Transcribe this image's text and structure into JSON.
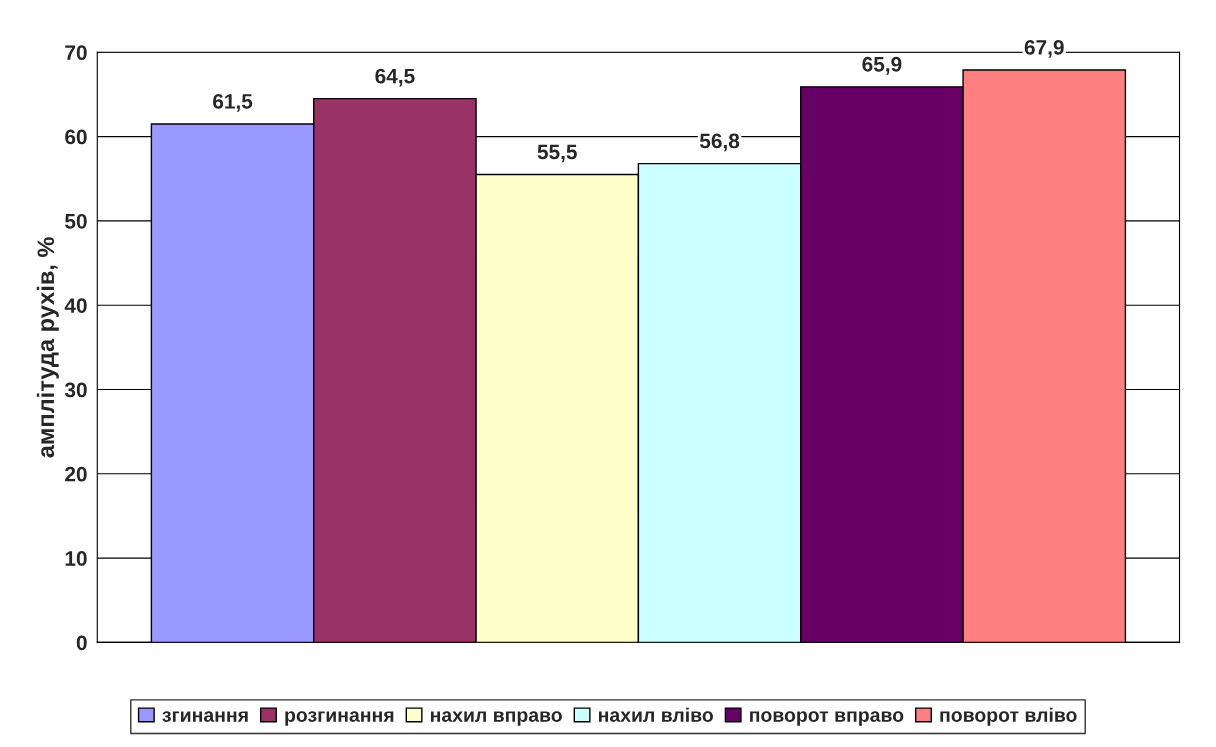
{
  "chart_data": {
    "type": "bar",
    "ylabel": "амплітуда рухів, %",
    "categories": [
      null
    ],
    "series": [
      {
        "name": "згинання",
        "color": "#9999ff",
        "values": [
          61.5
        ],
        "value_labels": [
          "61,5"
        ]
      },
      {
        "name": "розгинання",
        "color": "#993366",
        "values": [
          64.5
        ],
        "value_labels": [
          "64,5"
        ]
      },
      {
        "name": "нахил вправо",
        "color": "#ffffcc",
        "values": [
          55.5
        ],
        "value_labels": [
          "55,5"
        ]
      },
      {
        "name": "нахил вліво",
        "color": "#ccffff",
        "values": [
          56.8
        ],
        "value_labels": [
          "56,8"
        ]
      },
      {
        "name": "поворот вправо",
        "color": "#660066",
        "values": [
          65.9
        ],
        "value_labels": [
          "65,9"
        ]
      },
      {
        "name": "поворот вліво",
        "color": "#ff8080",
        "values": [
          67.9
        ],
        "value_labels": [
          "67,9"
        ]
      }
    ],
    "ylim": [
      0,
      70
    ],
    "yticks": [
      0,
      10,
      20,
      30,
      40,
      50,
      60,
      70
    ],
    "grid": "y",
    "legend": "bottom"
  }
}
